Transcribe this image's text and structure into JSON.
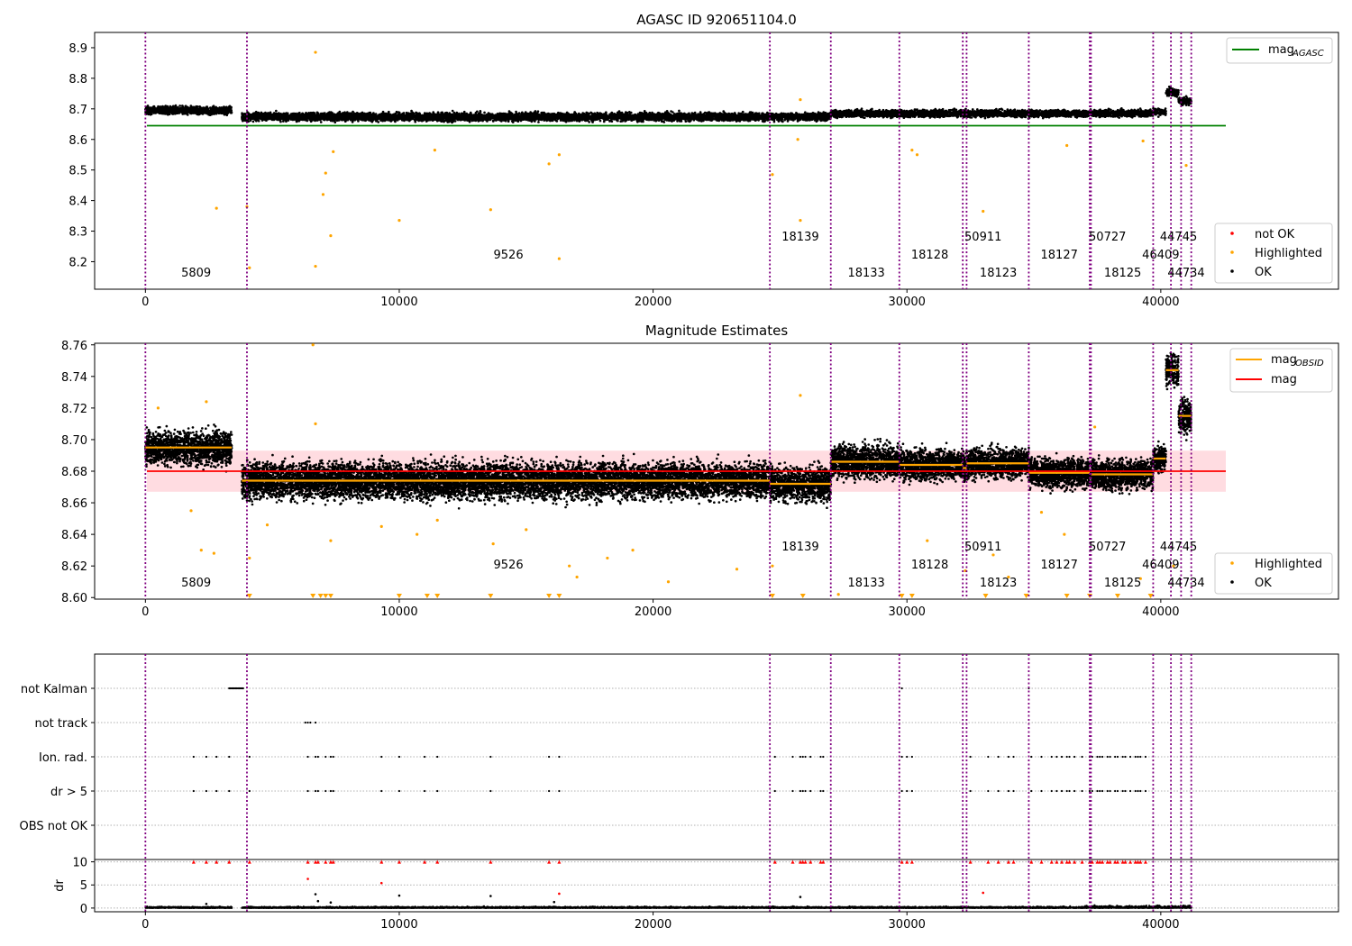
{
  "chart_data": [
    {
      "type": "scatter",
      "title": "AGASC ID 920651104.0",
      "xlim": [
        -2000,
        47000
      ],
      "ylim": [
        8.11,
        8.95
      ],
      "x_ticks": [
        0,
        10000,
        20000,
        30000,
        40000
      ],
      "y_ticks": [
        8.2,
        8.3,
        8.4,
        8.5,
        8.6,
        8.7,
        8.8,
        8.9
      ],
      "grid": false,
      "obsid_boundaries": [
        0,
        4000,
        24600,
        27000,
        29700,
        32200,
        32350,
        34800,
        37200,
        37250,
        39700,
        40400,
        40800,
        41200
      ],
      "obsid_labels": [
        {
          "text": "5809",
          "x": 2000,
          "row": 0
        },
        {
          "text": "9526",
          "x": 14300,
          "row": 1
        },
        {
          "text": "18139",
          "x": 25800,
          "row": 2
        },
        {
          "text": "18133",
          "x": 28400,
          "row": 0
        },
        {
          "text": "18128",
          "x": 30900,
          "row": 1
        },
        {
          "text": "50911",
          "x": 33000,
          "row": 2
        },
        {
          "text": "18123",
          "x": 33600,
          "row": 0
        },
        {
          "text": "18127",
          "x": 36000,
          "row": 1
        },
        {
          "text": "50727",
          "x": 37900,
          "row": 2
        },
        {
          "text": "18125",
          "x": 38500,
          "row": 0
        },
        {
          "text": "46409",
          "x": 40000,
          "row": 1
        },
        {
          "text": "44745",
          "x": 40700,
          "row": 2
        },
        {
          "text": "44734",
          "x": 41000,
          "row": 0
        }
      ],
      "mag_agasc": 8.645,
      "segments": [
        {
          "x0": 0,
          "x1": 3400,
          "mean": 8.695,
          "spread": 0.012
        },
        {
          "x0": 3800,
          "x1": 27000,
          "mean": 8.674,
          "spread": 0.013
        },
        {
          "x0": 27000,
          "x1": 39700,
          "mean": 8.685,
          "spread": 0.011
        },
        {
          "x0": 39700,
          "x1": 40200,
          "mean": 8.69,
          "spread": 0.01
        },
        {
          "x0": 40200,
          "x1": 40700,
          "mean": 8.755,
          "spread": 0.012
        },
        {
          "x0": 40700,
          "x1": 41200,
          "mean": 8.725,
          "spread": 0.012
        }
      ],
      "highlighted_points": [
        [
          6700,
          8.885
        ],
        [
          2800,
          8.375
        ],
        [
          6700,
          8.185
        ],
        [
          7000,
          8.42
        ],
        [
          7100,
          8.49
        ],
        [
          7300,
          8.285
        ],
        [
          7400,
          8.56
        ],
        [
          4100,
          8.18
        ],
        [
          4000,
          8.38
        ],
        [
          10000,
          8.335
        ],
        [
          13600,
          8.37
        ],
        [
          16300,
          8.21
        ],
        [
          15900,
          8.52
        ],
        [
          16300,
          8.55
        ],
        [
          11400,
          8.565
        ],
        [
          24700,
          8.485
        ],
        [
          25800,
          8.335
        ],
        [
          25700,
          8.6
        ],
        [
          25800,
          8.73
        ],
        [
          30200,
          8.565
        ],
        [
          30400,
          8.55
        ],
        [
          33000,
          8.365
        ],
        [
          36300,
          8.58
        ],
        [
          39300,
          8.595
        ],
        [
          41000,
          8.515
        ]
      ],
      "legend_line": {
        "label": "mag",
        "subscript": "AGASC",
        "color": "#008000",
        "position": "upper-right"
      },
      "legend_points": {
        "entries": [
          {
            "label": "not OK",
            "color": "#ff0000"
          },
          {
            "label": "Highlighted",
            "color": "#ffa500"
          },
          {
            "label": "OK",
            "color": "#000000"
          }
        ],
        "position": "lower-right"
      }
    },
    {
      "type": "scatter",
      "title": "Magnitude Estimates",
      "xlim": [
        -2000,
        47000
      ],
      "ylim": [
        8.599,
        8.761
      ],
      "x_ticks": [
        0,
        10000,
        20000,
        30000,
        40000
      ],
      "y_ticks": [
        8.6,
        8.62,
        8.64,
        8.66,
        8.68,
        8.7,
        8.72,
        8.74,
        8.76
      ],
      "grid": false,
      "mag": 8.68,
      "mag_band": [
        8.667,
        8.693
      ],
      "segments": [
        {
          "x0": 0,
          "x1": 3400,
          "mean": 8.695,
          "spread": 0.01
        },
        {
          "x0": 3800,
          "x1": 24600,
          "mean": 8.674,
          "spread": 0.011
        },
        {
          "x0": 24600,
          "x1": 27000,
          "mean": 8.672,
          "spread": 0.01
        },
        {
          "x0": 27000,
          "x1": 29700,
          "mean": 8.686,
          "spread": 0.01
        },
        {
          "x0": 29700,
          "x1": 32200,
          "mean": 8.684,
          "spread": 0.009
        },
        {
          "x0": 32200,
          "x1": 32350,
          "mean": 8.682,
          "spread": 0.009
        },
        {
          "x0": 32350,
          "x1": 34800,
          "mean": 8.685,
          "spread": 0.009
        },
        {
          "x0": 34800,
          "x1": 37200,
          "mean": 8.679,
          "spread": 0.009
        },
        {
          "x0": 37250,
          "x1": 39700,
          "mean": 8.678,
          "spread": 0.009
        },
        {
          "x0": 39700,
          "x1": 40200,
          "mean": 8.688,
          "spread": 0.008
        },
        {
          "x0": 40200,
          "x1": 40700,
          "mean": 8.744,
          "spread": 0.01
        },
        {
          "x0": 40700,
          "x1": 41200,
          "mean": 8.715,
          "spread": 0.01
        }
      ],
      "highlighted_points": [
        [
          500,
          8.72
        ],
        [
          1800,
          8.655
        ],
        [
          2200,
          8.63
        ],
        [
          2400,
          8.724
        ],
        [
          2700,
          8.628
        ],
        [
          4100,
          8.625
        ],
        [
          4800,
          8.646
        ],
        [
          6700,
          8.71
        ],
        [
          6600,
          8.76
        ],
        [
          7300,
          8.636
        ],
        [
          9300,
          8.645
        ],
        [
          10700,
          8.64
        ],
        [
          11500,
          8.649
        ],
        [
          13700,
          8.634
        ],
        [
          15000,
          8.643
        ],
        [
          16700,
          8.62
        ],
        [
          17000,
          8.613
        ],
        [
          18200,
          8.625
        ],
        [
          19200,
          8.63
        ],
        [
          20600,
          8.61
        ],
        [
          23300,
          8.618
        ],
        [
          24700,
          8.62
        ],
        [
          25800,
          8.728
        ],
        [
          27300,
          8.602
        ],
        [
          30800,
          8.636
        ],
        [
          32300,
          8.617
        ],
        [
          33400,
          8.627
        ],
        [
          34000,
          8.613
        ],
        [
          35300,
          8.654
        ],
        [
          36200,
          8.64
        ],
        [
          37400,
          8.708
        ],
        [
          39200,
          8.612
        ],
        [
          40500,
          8.62
        ]
      ],
      "lower_bound_markers": [
        4100,
        6600,
        6900,
        7100,
        7300,
        10000,
        11100,
        11500,
        13600,
        15900,
        16300,
        24700,
        25900,
        29800,
        30200,
        33100,
        34700,
        36300,
        37200,
        38300,
        39600
      ],
      "legend_lines": {
        "entries": [
          {
            "label": "mag",
            "subscript": "OBSID",
            "color": "#ffa500"
          },
          {
            "label": "mag",
            "subscript": "",
            "color": "#ff0000"
          }
        ],
        "position": "upper-right"
      },
      "legend_points": {
        "entries": [
          {
            "label": "Highlighted",
            "color": "#ffa500"
          },
          {
            "label": "OK",
            "color": "#000000"
          }
        ],
        "position": "lower-right"
      }
    },
    {
      "type": "scatter",
      "title": "",
      "xlim": [
        -2000,
        47000
      ],
      "x_ticks": [
        0,
        10000,
        20000,
        30000,
        40000
      ],
      "flag_rows": [
        "not Kalman",
        "not track",
        "Ion. rad.",
        "dr > 5",
        "OBS not OK"
      ],
      "flag_points": {
        "not Kalman": [
          3300,
          3350,
          3400,
          3450,
          3500,
          3550,
          3600,
          3650,
          3700,
          3750,
          3800,
          3850,
          29800,
          34800
        ],
        "not track": [
          6300,
          6400,
          6500,
          6700
        ],
        "Ion. rad.": [
          1900,
          2400,
          2800,
          3300,
          4100,
          6400,
          6700,
          6800,
          7100,
          7300,
          7400,
          9300,
          10000,
          11000,
          11500,
          13600,
          15900,
          16300,
          24800,
          25500,
          25800,
          25900,
          26000,
          26200,
          26600,
          26700,
          29800,
          30000,
          30200,
          32500,
          33200,
          33600,
          34000,
          34200,
          34900,
          35300,
          35700,
          35900,
          36100,
          36300,
          36400,
          36600,
          36900,
          37200,
          37300,
          37500,
          37600,
          37700,
          37900,
          38000,
          38200,
          38300,
          38500,
          38600,
          38800,
          39000,
          39100,
          39200,
          39400
        ],
        "dr > 5": [
          1900,
          2400,
          2800,
          3300,
          4100,
          6400,
          6700,
          6800,
          7100,
          7300,
          7400,
          9300,
          10000,
          11000,
          11500,
          13600,
          15900,
          16300,
          24800,
          25500,
          25800,
          25900,
          26000,
          26200,
          26600,
          26700,
          29800,
          30000,
          30200,
          32500,
          33200,
          33600,
          34000,
          34200,
          34900,
          35300,
          35700,
          35900,
          36100,
          36300,
          36400,
          36600,
          36900,
          37200,
          37300,
          37500,
          37600,
          37700,
          37900,
          38000,
          38200,
          38300,
          38500,
          38600,
          38800,
          39000,
          39100,
          39200,
          39400
        ],
        "OBS not OK": []
      },
      "dr": {
        "ylabel": "dr",
        "y_ticks": [
          0,
          5,
          10
        ],
        "ylim": [
          -0.8,
          10.5
        ],
        "outliers": [
          [
            6400,
            6.3
          ],
          [
            9300,
            5.4
          ],
          [
            6700,
            3.0
          ],
          [
            10000,
            2.7
          ],
          [
            13600,
            2.6
          ],
          [
            16300,
            3.1
          ],
          [
            25800,
            2.4
          ],
          [
            33000,
            3.3
          ],
          [
            6800,
            1.5
          ],
          [
            7300,
            1.2
          ],
          [
            16100,
            1.3
          ],
          [
            2400,
            0.9
          ]
        ]
      }
    }
  ]
}
